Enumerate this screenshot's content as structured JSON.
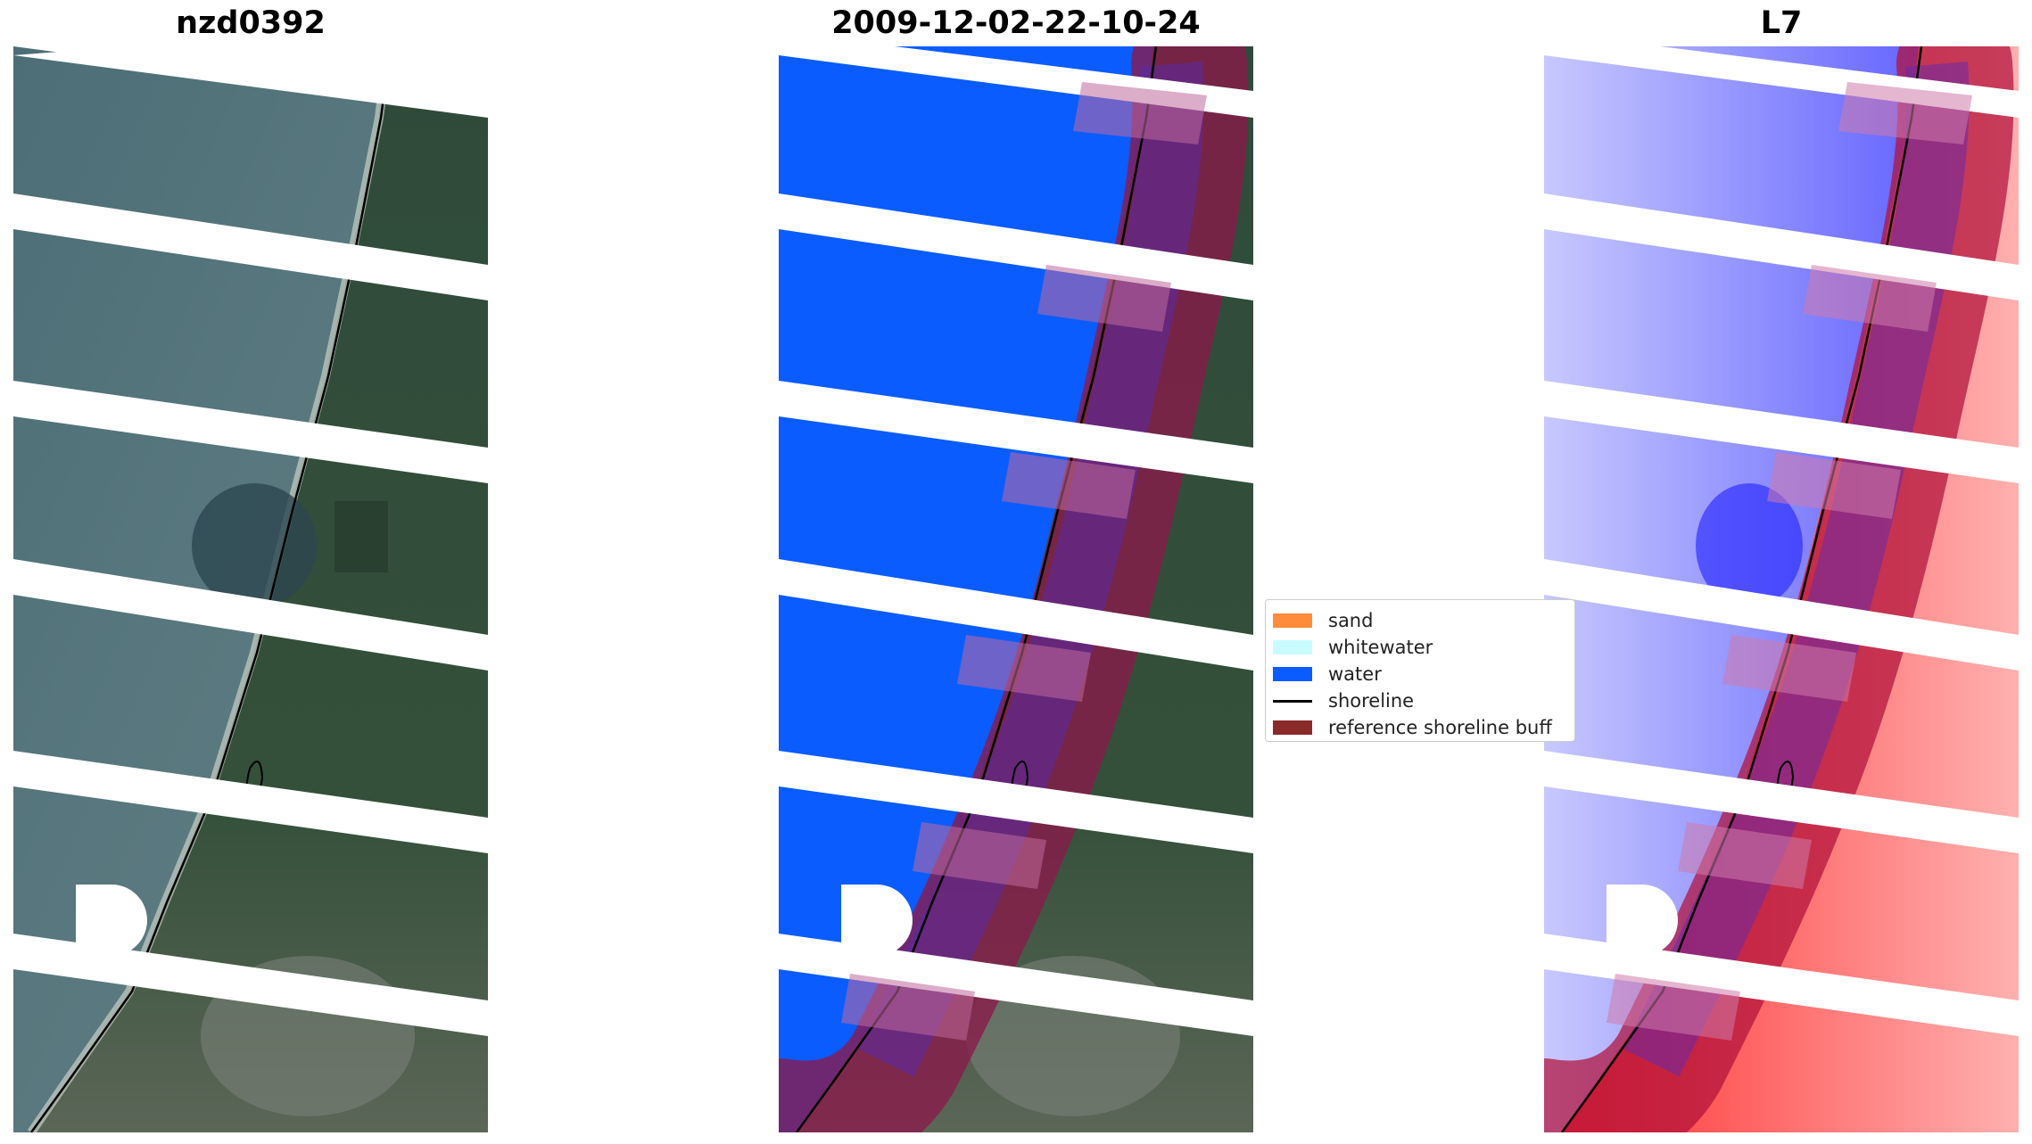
{
  "panels": [
    {
      "id": "rgb",
      "title": "nzd0392",
      "image": "true-color satellite image of coastline"
    },
    {
      "id": "classified",
      "title": "2009-12-02-22-10-24",
      "image": "classified image with water mask and reference shoreline buffer"
    },
    {
      "id": "index",
      "title": "L7",
      "image": "water index image blue-to-red with reference shoreline buffer"
    }
  ],
  "legend": {
    "items": [
      {
        "label": "sand",
        "color": "#ff8c3a",
        "kind": "patch"
      },
      {
        "label": "whitewater",
        "color": "#c8fbff",
        "kind": "patch"
      },
      {
        "label": "water",
        "color": "#0a5cff",
        "kind": "patch"
      },
      {
        "label": "shoreline",
        "color": "#000000",
        "kind": "line"
      },
      {
        "label": "reference shoreline buff",
        "color": "#8b2a2a",
        "kind": "patch"
      }
    ]
  },
  "colors": {
    "ocean": "#4f6f78",
    "land": "#2e4a35",
    "water_mask": "#0a5cff",
    "buffer": "#8b1a4a",
    "index_water": "#3b3bff",
    "index_land": "#ff3030"
  }
}
